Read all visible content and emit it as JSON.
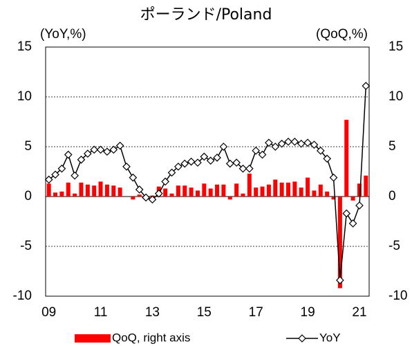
{
  "chart_data": {
    "type": "bar-line",
    "title": "ポーランド/Poland",
    "y_label": "(YoY,%)",
    "y2_label": "(QoQ,%)",
    "categories": [
      "09",
      null,
      null,
      null,
      null,
      null,
      null,
      null,
      "11",
      null,
      null,
      null,
      null,
      null,
      null,
      null,
      "13",
      null,
      null,
      null,
      null,
      null,
      null,
      null,
      "15",
      null,
      null,
      null,
      null,
      null,
      null,
      null,
      "17",
      null,
      null,
      null,
      null,
      null,
      null,
      null,
      "19",
      null,
      null,
      null,
      null,
      null,
      null,
      null,
      "21",
      null
    ],
    "series": [
      {
        "name": "QoQ, right axis",
        "type": "bar",
        "axis": "y2",
        "color": "#ff0000",
        "values": [
          1.3,
          0.4,
          0.5,
          1.4,
          0.3,
          1.4,
          1.2,
          1.1,
          1.5,
          1.2,
          1.1,
          0.9,
          0.0,
          -0.3,
          0.2,
          0.1,
          0.1,
          1.0,
          0.8,
          0.3,
          1.1,
          1.1,
          0.9,
          0.6,
          1.3,
          0.8,
          1.2,
          1.2,
          -0.3,
          1.3,
          0.3,
          2.3,
          0.9,
          1.0,
          1.2,
          1.7,
          1.4,
          1.4,
          1.5,
          0.9,
          1.9,
          0.6,
          1.2,
          0.5,
          -0.3,
          -9.2,
          7.7,
          -0.4,
          1.3,
          2.1
        ]
      },
      {
        "name": "YoY",
        "type": "line",
        "color": "#000000",
        "values": [
          1.7,
          2.2,
          2.8,
          4.2,
          2.1,
          3.7,
          4.3,
          4.7,
          4.7,
          4.5,
          4.7,
          5.1,
          3.0,
          1.9,
          0.7,
          -0.1,
          -0.3,
          0.3,
          1.5,
          2.4,
          3.0,
          3.3,
          3.5,
          3.4,
          4.0,
          3.6,
          3.9,
          5.0,
          3.3,
          3.4,
          2.8,
          2.8,
          4.6,
          4.2,
          5.4,
          5.0,
          5.3,
          5.5,
          5.5,
          5.3,
          5.4,
          5.2,
          4.6,
          3.8,
          1.9,
          -8.4,
          -1.7,
          -2.7,
          -0.9,
          11.1
        ]
      }
    ],
    "ylim": [
      -10,
      15
    ],
    "yticks": [
      15,
      10,
      5,
      0,
      -5,
      -10
    ],
    "y2lim": [
      -10,
      15
    ],
    "y2ticks": [
      15,
      10,
      5,
      0,
      -5,
      -10
    ],
    "grid": true,
    "legend": "bottom"
  }
}
